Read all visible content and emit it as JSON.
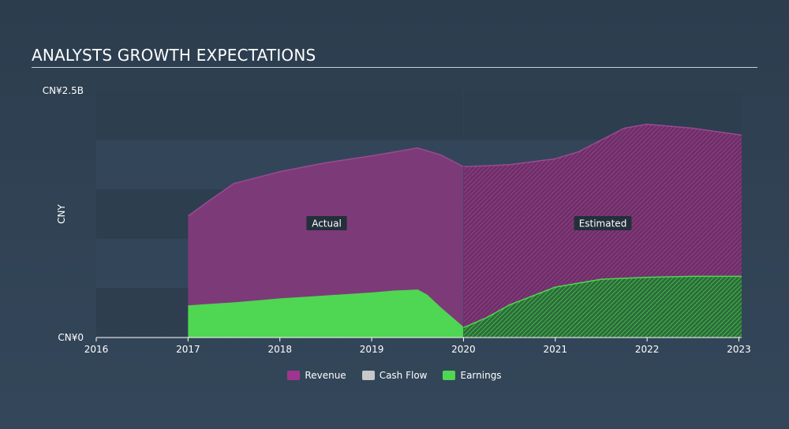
{
  "header": {
    "title": "ANALYSTS GROWTH EXPECTATIONS"
  },
  "chart_data": {
    "type": "area",
    "ylabel": "CNY",
    "ylim": [
      0,
      2.5
    ],
    "y_tick_labels": [
      "CN¥2.5B",
      "CN¥0"
    ],
    "x_ticks": [
      "2016",
      "2017",
      "2018",
      "2019",
      "2020",
      "2021",
      "2022",
      "2023"
    ],
    "xlim": [
      2016,
      2023.03
    ],
    "actual_end": 2020,
    "region_labels": {
      "actual": "Actual",
      "estimated": "Estimated"
    },
    "series": [
      {
        "name": "Revenue",
        "color": "#a0358f",
        "points": [
          [
            2017.0,
            1.23
          ],
          [
            2017.25,
            1.4
          ],
          [
            2017.5,
            1.56
          ],
          [
            2017.75,
            1.62
          ],
          [
            2018.0,
            1.68
          ],
          [
            2018.5,
            1.77
          ],
          [
            2019.0,
            1.84
          ],
          [
            2019.25,
            1.88
          ],
          [
            2019.5,
            1.92
          ],
          [
            2019.75,
            1.85
          ],
          [
            2020.0,
            1.73
          ],
          [
            2020.5,
            1.75
          ],
          [
            2021.0,
            1.81
          ],
          [
            2021.25,
            1.88
          ],
          [
            2021.5,
            2.0
          ],
          [
            2021.75,
            2.12
          ],
          [
            2022.0,
            2.16
          ],
          [
            2022.5,
            2.12
          ],
          [
            2023.03,
            2.05
          ]
        ]
      },
      {
        "name": "Cash Flow",
        "color": "#c8c8c8",
        "points": []
      },
      {
        "name": "Earnings",
        "color": "#4fd652",
        "points": [
          [
            2017.0,
            0.32
          ],
          [
            2017.5,
            0.35
          ],
          [
            2018.0,
            0.39
          ],
          [
            2018.5,
            0.42
          ],
          [
            2019.0,
            0.45
          ],
          [
            2019.25,
            0.47
          ],
          [
            2019.5,
            0.48
          ],
          [
            2019.6,
            0.43
          ],
          [
            2019.75,
            0.3
          ],
          [
            2020.0,
            0.1
          ],
          [
            2020.25,
            0.2
          ],
          [
            2020.5,
            0.33
          ],
          [
            2021.0,
            0.51
          ],
          [
            2021.5,
            0.59
          ],
          [
            2022.0,
            0.61
          ],
          [
            2022.5,
            0.62
          ],
          [
            2023.03,
            0.62
          ]
        ]
      }
    ],
    "legend": [
      {
        "label": "Revenue",
        "color": "#a0358f"
      },
      {
        "label": "Cash Flow",
        "color": "#c8c8c8"
      },
      {
        "label": "Earnings",
        "color": "#4fd652"
      }
    ]
  }
}
